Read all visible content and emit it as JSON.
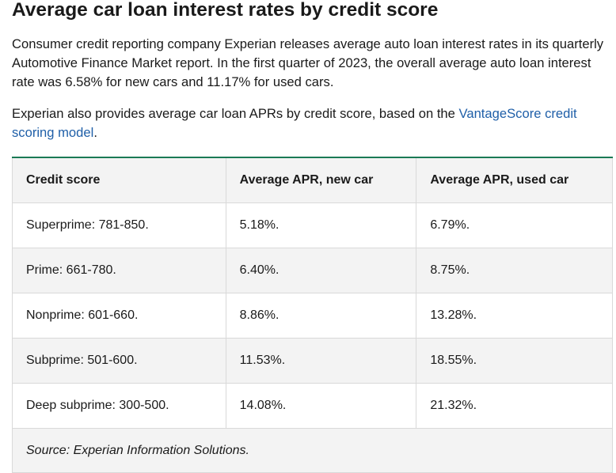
{
  "header": {
    "title": "Average car loan interest rates by credit score"
  },
  "paragraphs": [
    {
      "text": "Consumer credit reporting company Experian releases average auto loan interest rates in its quarterly Automotive Finance Market report. In the first quarter of 2023, the overall average auto loan interest rate was 6.58% for new cars and 11.17% for used cars."
    },
    {
      "text": "Experian also provides average car loan APRs by credit score, based on the ",
      "link": "VantageScore credit scoring model",
      "text_after": "."
    }
  ],
  "table": {
    "headers": [
      "Credit score",
      "Average APR, new car",
      "Average APR, used car"
    ],
    "rows": [
      [
        "Superprime: 781-850.",
        "5.18%.",
        "6.79%."
      ],
      [
        "Prime: 661-780.",
        "6.40%.",
        "8.75%."
      ],
      [
        "Nonprime: 601-660.",
        "8.86%.",
        "13.28%."
      ],
      [
        "Subprime: 501-600.",
        "11.53%.",
        "18.55%."
      ],
      [
        "Deep subprime: 300-500.",
        "14.08%.",
        "21.32%."
      ]
    ],
    "source": "Source: Experian Information Solutions."
  }
}
